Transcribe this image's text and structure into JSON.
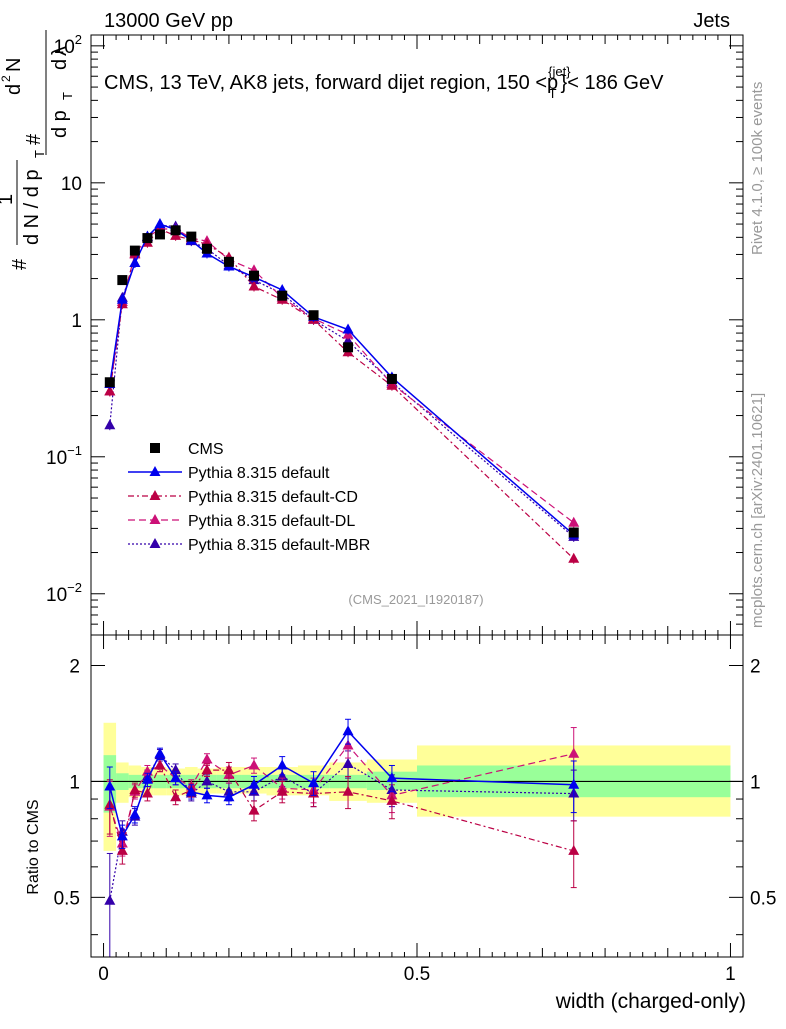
{
  "header": {
    "left": "13000 GeV pp",
    "right": "Jets",
    "plot_title": "CMS, 13 TeV, AK8 jets, forward dijet region, 150 <p",
    "plot_title_sup": "{jet}",
    "plot_title_sub": "T",
    "plot_title_end": "}< 186 GeV",
    "side_rivet": "Rivet 4.1.0, ≥ 100k events",
    "side_mcplots": "mcplots.cern.ch [arXiv:2401.10621]",
    "watermark": "(CMS_2021_I1920187)"
  },
  "main_ylabel_parts": [
    "#",
    "1",
    "d N / d p",
    "T",
    "#",
    "d p",
    "T",
    "d",
    "N",
    "2",
    "d",
    "λ"
  ],
  "chart_data": [
    {
      "type": "scatter",
      "title": "CMS, 13 TeV, AK8 jets, forward dijet region, 150 < p_T^{jet} < 186 GeV",
      "xlabel": "width (charged-only)",
      "ylabel": "1/(dN/dp_T) d²N/(dp_T dλ)",
      "xlim": [
        -0.02,
        1.02
      ],
      "ylim": [
        0.005,
        120
      ],
      "yscale": "log",
      "y_ticks": [
        {
          "value": 100,
          "label": "10",
          "sup": "2"
        },
        {
          "value": 10,
          "label": "10",
          "sup": ""
        },
        {
          "value": 1,
          "label": "1",
          "sup": ""
        },
        {
          "value": 0.1,
          "label": "10",
          "sup": "−1"
        },
        {
          "value": 0.01,
          "label": "10",
          "sup": "−2"
        }
      ],
      "x": [
        0.01,
        0.03,
        0.05,
        0.07,
        0.09,
        0.115,
        0.14,
        0.165,
        0.2,
        0.24,
        0.285,
        0.335,
        0.39,
        0.46,
        0.75
      ],
      "series": [
        {
          "name": "CMS",
          "color": "#000000",
          "marker": "square",
          "style": "none",
          "values": [
            0.35,
            1.95,
            3.2,
            3.95,
            4.2,
            4.5,
            4.05,
            3.3,
            2.65,
            2.1,
            1.5,
            1.08,
            0.63,
            0.37,
            0.028
          ]
        },
        {
          "name": "Pythia 8.315 default",
          "color": "#0000ee",
          "marker": "triangle",
          "style": "solid",
          "values": [
            0.34,
            1.4,
            2.6,
            4.05,
            5.0,
            4.55,
            3.8,
            3.05,
            2.45,
            2.05,
            1.65,
            1.05,
            0.85,
            0.38,
            0.027
          ]
        },
        {
          "name": "Pythia 8.315 default-CD",
          "color": "#bb0044",
          "marker": "triangle",
          "style": "dashdot",
          "values": [
            0.3,
            1.3,
            3.05,
            3.65,
            4.6,
            4.1,
            3.85,
            3.55,
            2.85,
            1.75,
            1.4,
            1.0,
            0.58,
            0.33,
            0.018
          ]
        },
        {
          "name": "Pythia 8.315 default-DL",
          "color": "#cc1177",
          "marker": "triangle",
          "style": "dashed",
          "values": [
            0.3,
            1.35,
            3.0,
            4.0,
            4.6,
            4.6,
            3.95,
            3.75,
            2.75,
            2.3,
            1.45,
            1.02,
            0.78,
            0.34,
            0.033
          ]
        },
        {
          "name": "Pythia 8.315 default-MBR",
          "color": "#3300aa",
          "marker": "triangle",
          "style": "dotted",
          "values": [
            0.17,
            1.45,
            2.6,
            4.05,
            4.9,
            4.8,
            3.75,
            3.3,
            2.5,
            1.95,
            1.55,
            1.0,
            0.7,
            0.35,
            0.026
          ]
        }
      ],
      "legend": {
        "placement": "left-middle"
      }
    },
    {
      "type": "scatter",
      "xlabel": "width (charged-only)",
      "ylabel": "Ratio to CMS",
      "xlim": [
        -0.02,
        1.02
      ],
      "ylim": [
        0.35,
        2.4
      ],
      "yscale": "log",
      "y_ticks": [
        {
          "value": 2,
          "label": "2"
        },
        {
          "value": 1,
          "label": "1"
        },
        {
          "value": 0.5,
          "label": "0.5"
        }
      ],
      "x_ticks": [
        {
          "value": 0,
          "label": "0"
        },
        {
          "value": 0.5,
          "label": "0.5"
        },
        {
          "value": 1,
          "label": "1"
        }
      ],
      "bands": {
        "edges": [
          0.0,
          0.02,
          0.04,
          0.06,
          0.08,
          0.1,
          0.13,
          0.15,
          0.18,
          0.22,
          0.26,
          0.31,
          0.36,
          0.42,
          0.5,
          1.0
        ],
        "stat_lo": [
          0.83,
          0.95,
          0.96,
          0.96,
          0.96,
          0.96,
          0.96,
          0.96,
          0.96,
          0.96,
          0.96,
          0.96,
          0.96,
          0.95,
          0.91
        ],
        "stat_hi": [
          1.17,
          1.05,
          1.04,
          1.04,
          1.04,
          1.04,
          1.04,
          1.04,
          1.04,
          1.04,
          1.04,
          1.04,
          1.04,
          1.06,
          1.1
        ],
        "total_lo": [
          0.66,
          0.88,
          0.91,
          0.92,
          0.92,
          0.92,
          0.92,
          0.93,
          0.93,
          0.93,
          0.92,
          0.92,
          0.89,
          0.88,
          0.81
        ],
        "total_hi": [
          1.42,
          1.12,
          1.1,
          1.09,
          1.09,
          1.08,
          1.09,
          1.08,
          1.09,
          1.09,
          1.09,
          1.1,
          1.12,
          1.14,
          1.24
        ]
      },
      "series": [
        {
          "name": "Pythia 8.315 default",
          "values": [
            0.97,
            0.72,
            0.82,
            1.01,
            1.18,
            1.02,
            0.94,
            0.92,
            0.91,
            0.98,
            1.1,
            0.99,
            1.35,
            1.02,
            0.98
          ],
          "errors": [
            0.12,
            0.05,
            0.04,
            0.04,
            0.04,
            0.04,
            0.04,
            0.04,
            0.04,
            0.05,
            0.06,
            0.07,
            0.1,
            0.08,
            0.15
          ]
        },
        {
          "name": "Pythia 8.315 default-CD",
          "values": [
            0.87,
            0.66,
            0.95,
            0.93,
            1.1,
            0.91,
            0.95,
            1.07,
            1.07,
            0.84,
            0.94,
            0.93,
            0.94,
            0.89,
            0.66
          ],
          "errors": [
            0.14,
            0.05,
            0.04,
            0.04,
            0.04,
            0.04,
            0.04,
            0.04,
            0.05,
            0.05,
            0.06,
            0.07,
            0.09,
            0.09,
            0.13
          ]
        },
        {
          "name": "Pythia 8.315 default-DL",
          "values": [
            0.86,
            0.69,
            0.94,
            1.06,
            1.1,
            1.02,
            0.97,
            1.14,
            1.04,
            1.1,
            0.96,
            0.95,
            1.24,
            0.92,
            1.18
          ],
          "errors": [
            0.14,
            0.05,
            0.04,
            0.04,
            0.04,
            0.04,
            0.04,
            0.04,
            0.05,
            0.05,
            0.06,
            0.07,
            0.09,
            0.09,
            0.2
          ]
        },
        {
          "name": "Pythia 8.315 default-MBR",
          "values": [
            0.49,
            0.74,
            0.81,
            1.03,
            1.17,
            1.07,
            0.93,
            1.0,
            0.94,
            0.94,
            1.03,
            0.93,
            1.11,
            0.95,
            0.93
          ],
          "errors": [
            0.16,
            0.05,
            0.04,
            0.04,
            0.04,
            0.04,
            0.04,
            0.04,
            0.05,
            0.05,
            0.06,
            0.07,
            0.09,
            0.09,
            0.14
          ]
        }
      ]
    }
  ]
}
